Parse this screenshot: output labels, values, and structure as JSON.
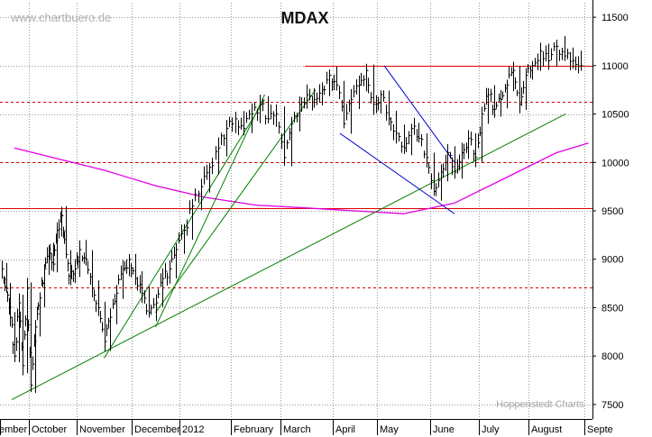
{
  "chart_data": {
    "type": "ohlc",
    "title": "MDAX",
    "source_label": "www.chartbuero.de",
    "watermark": "Hoppenstedt Charts",
    "ylim": [
      7350,
      11650
    ],
    "y_ticks": [
      7500,
      8000,
      8500,
      9000,
      9500,
      10000,
      10500,
      11000,
      11500
    ],
    "x_labels": [
      "ember",
      "October",
      "November",
      "December",
      "2012",
      "February",
      "March",
      "April",
      "May",
      "June",
      "July",
      "August",
      "Septe"
    ],
    "grid": "dotted",
    "colors": {
      "price": "#000000",
      "support_trend": "#008000",
      "channel": "#0000cc",
      "moving_average": "#e000e0",
      "horizontal_level": "#dd0000"
    },
    "horizontal_levels_solid": [
      11000,
      9530
    ],
    "horizontal_levels_dashed": [
      10630,
      10000,
      8710
    ],
    "price_path": [
      [
        "ember",
        8900
      ],
      [
        "ember",
        8700
      ],
      [
        "ember",
        8400
      ],
      [
        "ember",
        8000
      ],
      [
        "ember",
        8550
      ],
      [
        "ember",
        7900
      ],
      [
        "ember",
        8700
      ],
      [
        "October",
        7700
      ],
      [
        "October",
        8300
      ],
      [
        "October",
        8600
      ],
      [
        "October",
        8900
      ],
      [
        "October",
        9100
      ],
      [
        "October",
        8950
      ],
      [
        "October",
        9300
      ],
      [
        "October",
        9450
      ],
      [
        "October",
        9050
      ],
      [
        "October",
        8800
      ],
      [
        "October",
        8900
      ],
      [
        "November",
        9100
      ],
      [
        "November",
        9000
      ],
      [
        "November",
        8700
      ],
      [
        "November",
        8500
      ],
      [
        "November",
        8150
      ],
      [
        "November",
        8400
      ],
      [
        "November",
        8650
      ],
      [
        "November",
        8900
      ],
      [
        "November",
        9000
      ],
      [
        "December",
        8800
      ],
      [
        "December",
        8650
      ],
      [
        "December",
        8450
      ],
      [
        "December",
        8550
      ],
      [
        "December",
        8800
      ],
      [
        "December",
        8900
      ],
      [
        "December",
        9100
      ],
      [
        "2012",
        9300
      ],
      [
        "2012",
        9550
      ],
      [
        "2012",
        9750
      ],
      [
        "2012",
        9950
      ],
      [
        "2012",
        10150
      ],
      [
        "2012",
        10350
      ],
      [
        "February",
        10450
      ],
      [
        "February",
        10350
      ],
      [
        "February",
        10500
      ],
      [
        "February",
        10600
      ],
      [
        "February",
        10450
      ],
      [
        "February",
        10500
      ],
      [
        "March",
        10050
      ],
      [
        "March",
        10400
      ],
      [
        "March",
        10600
      ],
      [
        "March",
        10700
      ],
      [
        "March",
        10650
      ],
      [
        "March",
        10750
      ],
      [
        "March",
        10900
      ],
      [
        "April",
        10800
      ],
      [
        "April",
        10400
      ],
      [
        "April",
        10650
      ],
      [
        "April",
        10800
      ],
      [
        "April",
        10950
      ],
      [
        "April",
        10600
      ],
      [
        "May",
        10700
      ],
      [
        "May",
        10450
      ],
      [
        "May",
        10300
      ],
      [
        "May",
        10150
      ],
      [
        "May",
        10350
      ],
      [
        "May",
        10250
      ],
      [
        "May",
        10050
      ],
      [
        "June",
        9700
      ],
      [
        "June",
        9900
      ],
      [
        "June",
        10100
      ],
      [
        "June",
        9900
      ],
      [
        "June",
        10100
      ],
      [
        "June",
        10250
      ],
      [
        "June",
        10050
      ],
      [
        "July",
        10500
      ],
      [
        "July",
        10700
      ],
      [
        "July",
        10550
      ],
      [
        "July",
        10650
      ],
      [
        "July",
        10800
      ],
      [
        "July",
        10950
      ],
      [
        "July",
        10600
      ],
      [
        "July",
        10900
      ],
      [
        "August",
        11000
      ],
      [
        "August",
        11150
      ],
      [
        "August",
        11050
      ],
      [
        "August",
        11200
      ],
      [
        "August",
        11100
      ],
      [
        "August",
        11050
      ],
      [
        "August",
        11000
      ]
    ],
    "trend_lines": [
      {
        "kind": "support",
        "from": [
          "ember",
          7550
        ],
        "to": [
          "August",
          10500
        ]
      },
      {
        "kind": "support",
        "from": [
          "November",
          7980
        ],
        "to": [
          "February",
          10650
        ]
      },
      {
        "kind": "support",
        "from": [
          "December",
          8300
        ],
        "to": [
          "February",
          10700
        ]
      },
      {
        "kind": "support",
        "from": [
          "December",
          8450
        ],
        "to": [
          "March",
          10750
        ]
      },
      {
        "kind": "channel",
        "from": [
          "April",
          10300
        ],
        "to": [
          "June",
          9470
        ]
      },
      {
        "kind": "channel",
        "from": [
          "May",
          11000
        ],
        "to": [
          "June",
          10000
        ]
      }
    ],
    "moving_average": [
      [
        "ember",
        10150
      ],
      [
        "October",
        10050
      ],
      [
        "November",
        9920
      ],
      [
        "December",
        9760
      ],
      [
        "2012",
        9640
      ],
      [
        "February",
        9560
      ],
      [
        "March",
        9530
      ],
      [
        "April",
        9500
      ],
      [
        "May",
        9470
      ],
      [
        "June",
        9580
      ],
      [
        "July",
        9830
      ],
      [
        "August",
        10100
      ],
      [
        "Septe",
        10200
      ]
    ]
  }
}
